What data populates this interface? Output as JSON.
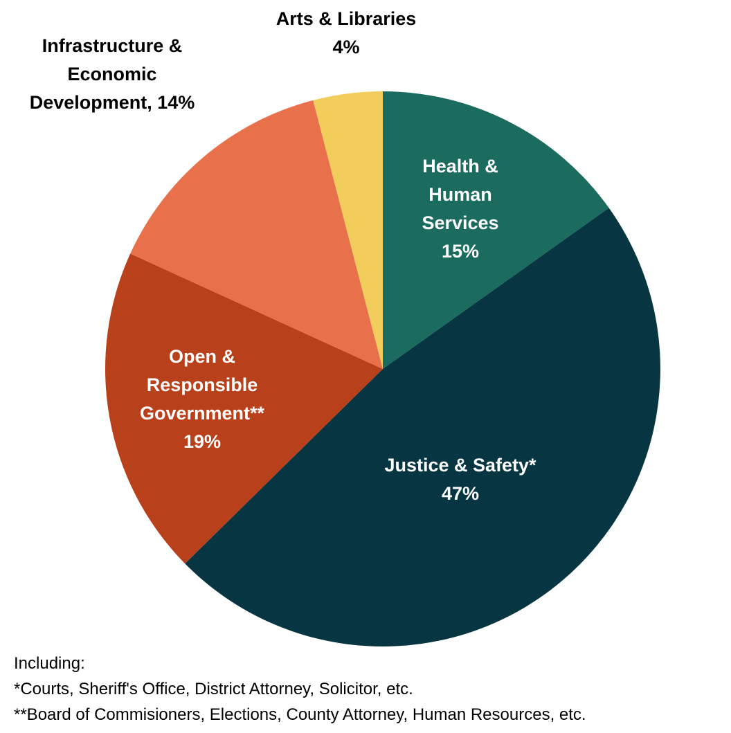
{
  "chart_data": {
    "type": "pie",
    "start_angle": "12 o'clock",
    "direction": "clockwise",
    "legend": "none",
    "slices": [
      {
        "name": "Health & Human Services",
        "label_lines": [
          "Health &",
          "Human",
          "Services",
          "15%"
        ],
        "value": 15,
        "color": "#1b6b5f",
        "text_color": "#ffffff",
        "label_position": "inside"
      },
      {
        "name": "Justice & Safety*",
        "label_lines": [
          "Justice & Safety*",
          "47%"
        ],
        "value": 47,
        "color": "#073642",
        "text_color": "#ffffff",
        "label_position": "inside"
      },
      {
        "name": "Open & Responsible Government**",
        "label_lines": [
          "Open &",
          "Responsible",
          "Government**",
          "19%"
        ],
        "value": 19,
        "color": "#b8401b",
        "text_color": "#ffffff",
        "label_position": "inside"
      },
      {
        "name": "Infrastructure & Economic Development",
        "label_lines": [
          "Infrastructure &",
          "Economic",
          "Development, 14%"
        ],
        "value": 14,
        "color": "#e8704a",
        "text_color": "#000000",
        "label_position": "outside"
      },
      {
        "name": "Arts & Libraries",
        "label_lines": [
          "Arts & Libraries",
          "4%"
        ],
        "value": 4,
        "color": "#f2cd5c",
        "text_color": "#000000",
        "label_position": "outside"
      }
    ]
  },
  "footnotes": {
    "heading": "Including:",
    "note_1": "*Courts, Sheriff's Office, District Attorney, Solicitor, etc.",
    "note_2": "**Board of Commisioners, Elections, County Attorney, Human Resources, etc."
  }
}
